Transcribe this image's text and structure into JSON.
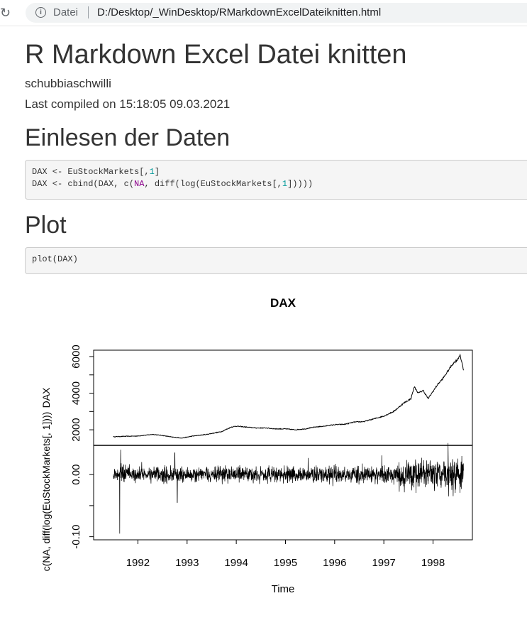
{
  "browser": {
    "scheme_label": "Datei",
    "url": "D:/Desktop/_WinDesktop/RMarkdownExcelDateiknitten.html"
  },
  "document": {
    "title": "R Markdown Excel Datei knitten",
    "author": "schubbiaschwilli",
    "date": "Last compiled on 15:18:05 09.03.2021",
    "sections": [
      {
        "heading": "Einlesen der Daten",
        "code_lines": [
          "DAX <- EuStockMarkets[,1]",
          "DAX <- cbind(DAX, c(NA, diff(log(EuStockMarkets[,1]))))"
        ]
      },
      {
        "heading": "Plot",
        "code_lines": [
          "plot(DAX)"
        ]
      }
    ]
  },
  "chart_data": {
    "type": "line",
    "title": "DAX",
    "xlabel": "Time",
    "xlim": [
      1991.1,
      1998.8
    ],
    "x_ticks": [
      "1992",
      "1993",
      "1994",
      "1995",
      "1996",
      "1997",
      "1998"
    ],
    "panels": [
      {
        "ylabel": "DAX",
        "ylim": [
          1150,
          6350
        ],
        "y_ticks": [
          "2000",
          "4000",
          "6000"
        ],
        "series": {
          "x": [
            1991.5,
            1991.7,
            1992.0,
            1992.3,
            1992.5,
            1992.7,
            1992.9,
            1993.1,
            1993.4,
            1993.7,
            1993.9,
            1994.0,
            1994.2,
            1994.4,
            1994.6,
            1994.8,
            1995.0,
            1995.2,
            1995.4,
            1995.6,
            1995.8,
            1996.0,
            1996.2,
            1996.4,
            1996.6,
            1996.8,
            1997.0,
            1997.2,
            1997.4,
            1997.55,
            1997.62,
            1997.7,
            1997.8,
            1997.9,
            1998.0,
            1998.1,
            1998.2,
            1998.3,
            1998.4,
            1998.5,
            1998.55,
            1998.62
          ],
          "y": [
            1620,
            1640,
            1660,
            1750,
            1690,
            1600,
            1550,
            1650,
            1750,
            1900,
            2150,
            2200,
            2150,
            2100,
            2100,
            2050,
            2050,
            2000,
            2050,
            2150,
            2200,
            2280,
            2300,
            2420,
            2450,
            2600,
            2750,
            3000,
            3450,
            3700,
            4350,
            4000,
            4150,
            3700,
            4100,
            4500,
            4800,
            5200,
            5600,
            5850,
            6100,
            5250
          ]
        }
      },
      {
        "ylabel": "c(NA, diff(log(EuStockMarkets[, 1])))",
        "ylim": [
          -0.105,
          0.047
        ],
        "y_ticks": [
          "-0.10",
          "0.00"
        ]
      }
    ]
  }
}
